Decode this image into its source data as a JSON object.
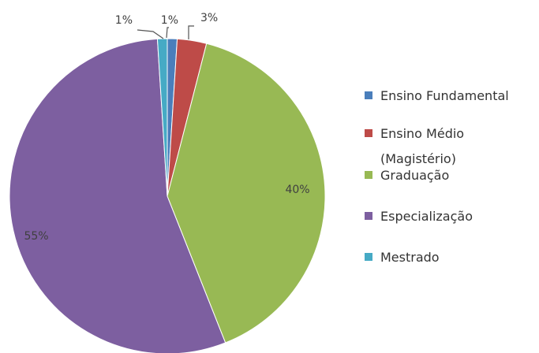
{
  "chart_data": {
    "type": "pie",
    "categories": [
      "Ensino Fundamental",
      "Ensino  Médio (Magistério)",
      "Graduação",
      "Especialização",
      "Mestrado"
    ],
    "values": [
      1,
      3,
      40,
      55,
      1
    ],
    "labels": [
      "1%",
      "3%",
      "40%",
      "55%",
      "1%"
    ],
    "colors": [
      "#4A7EBB",
      "#BE4B48",
      "#98B954",
      "#7D5FA0",
      "#46AAC5"
    ],
    "legend": {
      "position": "right",
      "items": [
        {
          "lines": [
            "Ensino Fundamental"
          ]
        },
        {
          "lines": [
            "Ensino  Médio",
            "(Magistério)"
          ]
        },
        {
          "lines": [
            "Graduação"
          ]
        },
        {
          "lines": [
            "Especialização"
          ]
        },
        {
          "lines": [
            "Mestrado"
          ]
        }
      ]
    }
  }
}
